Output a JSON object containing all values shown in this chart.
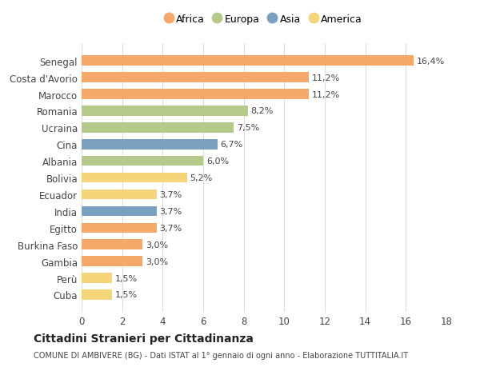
{
  "countries": [
    "Cuba",
    "Perù",
    "Gambia",
    "Burkina Faso",
    "Egitto",
    "India",
    "Ecuador",
    "Bolivia",
    "Albania",
    "Cina",
    "Ucraina",
    "Romania",
    "Marocco",
    "Costa d'Avorio",
    "Senegal"
  ],
  "values": [
    1.5,
    1.5,
    3.0,
    3.0,
    3.7,
    3.7,
    3.7,
    5.2,
    6.0,
    6.7,
    7.5,
    8.2,
    11.2,
    11.2,
    16.4
  ],
  "labels": [
    "1,5%",
    "1,5%",
    "3,0%",
    "3,0%",
    "3,7%",
    "3,7%",
    "3,7%",
    "5,2%",
    "6,0%",
    "6,7%",
    "7,5%",
    "8,2%",
    "11,2%",
    "11,2%",
    "16,4%"
  ],
  "continents": [
    "America",
    "America",
    "Africa",
    "Africa",
    "Africa",
    "Asia",
    "America",
    "America",
    "Europa",
    "Asia",
    "Europa",
    "Europa",
    "Africa",
    "Africa",
    "Africa"
  ],
  "colors": {
    "Africa": "#F4A96B",
    "Europa": "#B5C98A",
    "Asia": "#7B9FBF",
    "America": "#F5D57A"
  },
  "legend_order": [
    "Africa",
    "Europa",
    "Asia",
    "America"
  ],
  "xlim": [
    0,
    18
  ],
  "xticks": [
    0,
    2,
    4,
    6,
    8,
    10,
    12,
    14,
    16,
    18
  ],
  "title": "Cittadini Stranieri per Cittadinanza",
  "subtitle": "COMUNE DI AMBIVERE (BG) - Dati ISTAT al 1° gennaio di ogni anno - Elaborazione TUTTITALIA.IT",
  "bg_color": "#ffffff",
  "grid_color": "#dddddd"
}
